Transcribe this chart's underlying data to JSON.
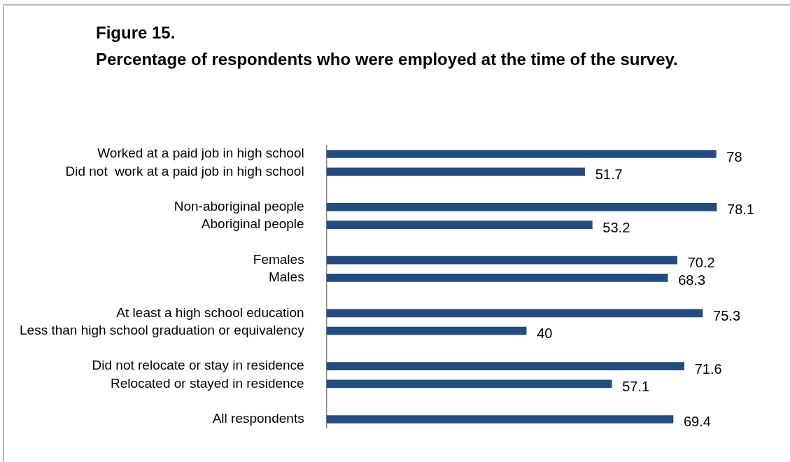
{
  "chart_data": {
    "type": "bar",
    "orientation": "horizontal",
    "title": "Figure 15.",
    "subtitle": "Percentage of respondents who were employed at the time of the survey.",
    "categories": [
      "Worked at a paid job in high school",
      "Did not  work at a paid job in high school",
      null,
      "Non-aboriginal people",
      "Aboriginal people",
      null,
      "Females",
      "Males",
      null,
      "At least a high school education",
      "Less than high school graduation or equivalency",
      null,
      "Did not relocate or stay in residence",
      "Relocated or stayed in residence",
      null,
      "All respondents"
    ],
    "values": [
      78,
      51.7,
      null,
      78.1,
      53.2,
      null,
      70.2,
      68.3,
      null,
      75.3,
      40,
      null,
      71.6,
      57.1,
      null,
      69.4
    ],
    "color": "#254c7e",
    "data_labels": true,
    "legend": false
  }
}
